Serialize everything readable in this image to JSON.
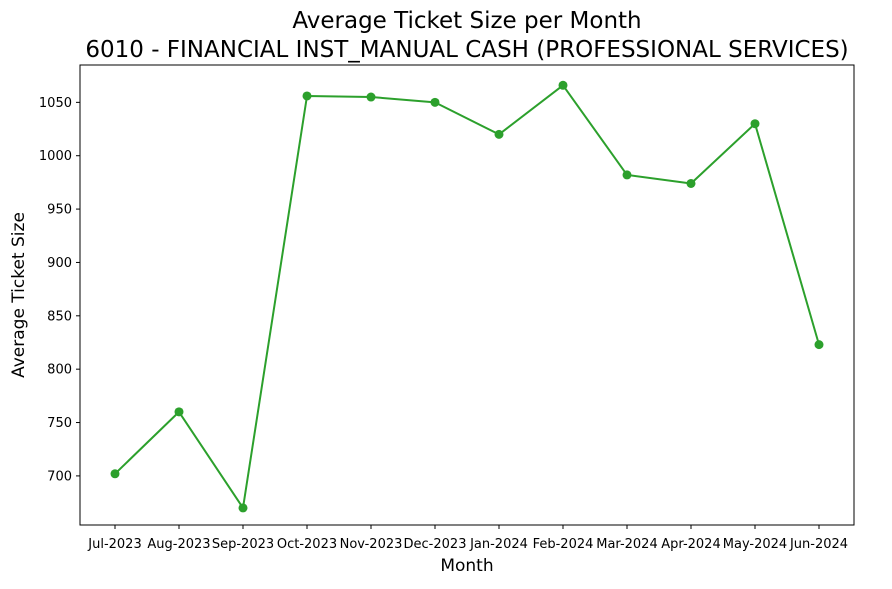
{
  "chart_data": {
    "type": "line",
    "title": "Average Ticket Size per Month",
    "subtitle": "6010 - FINANCIAL INST_MANUAL CASH (PROFESSIONAL SERVICES)",
    "xlabel": "Month",
    "ylabel": "Average Ticket Size",
    "categories": [
      "Jul-2023",
      "Aug-2023",
      "Sep-2023",
      "Oct-2023",
      "Nov-2023",
      "Dec-2023",
      "Jan-2024",
      "Feb-2024",
      "Mar-2024",
      "Apr-2024",
      "May-2024",
      "Jun-2024"
    ],
    "series": [
      {
        "values": [
          702,
          760,
          670,
          1056,
          1055,
          1050,
          1020,
          1066,
          982,
          974,
          1030,
          823
        ],
        "color": "#2ca02c",
        "marker": "circle"
      }
    ],
    "ylim": [
      654,
      1085
    ],
    "yticks": [
      700,
      750,
      800,
      850,
      900,
      950,
      1000,
      1050
    ],
    "grid": false,
    "legend": "none"
  }
}
